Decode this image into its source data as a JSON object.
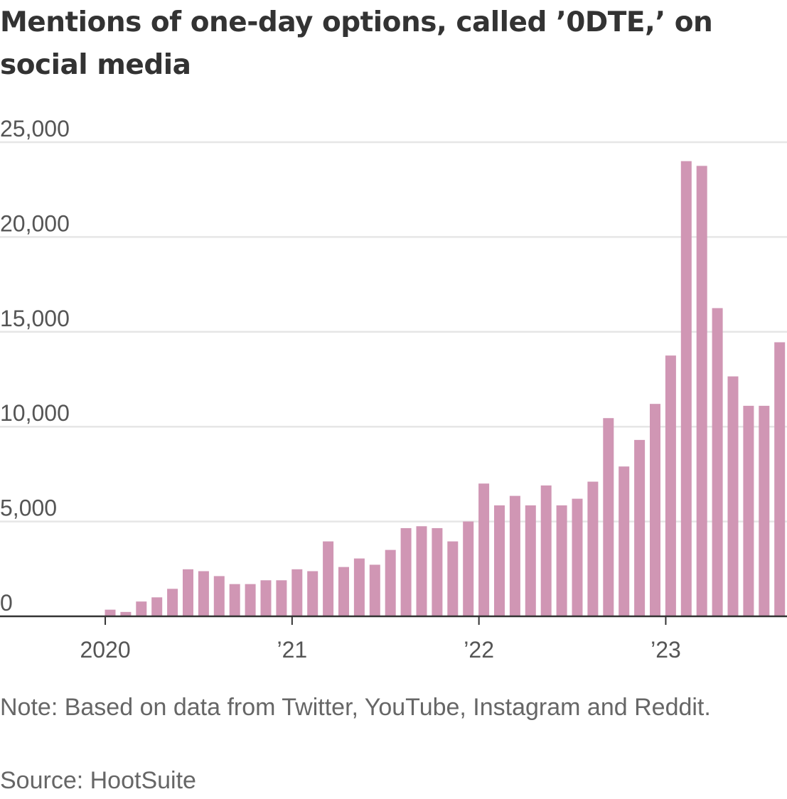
{
  "chart_data": {
    "type": "bar",
    "title": "Mentions of one-day options, called ’0DTE,’ on social media",
    "x_unit": "month",
    "x_start": "2020-01",
    "categories": [
      "2020-01",
      "2020-02",
      "2020-03",
      "2020-04",
      "2020-05",
      "2020-06",
      "2020-07",
      "2020-08",
      "2020-09",
      "2020-10",
      "2020-11",
      "2020-12",
      "2021-01",
      "2021-02",
      "2021-03",
      "2021-04",
      "2021-05",
      "2021-06",
      "2021-07",
      "2021-08",
      "2021-09",
      "2021-10",
      "2021-11",
      "2021-12",
      "2022-01",
      "2022-02",
      "2022-03",
      "2022-04",
      "2022-05",
      "2022-06",
      "2022-07",
      "2022-08",
      "2022-09",
      "2022-10",
      "2022-11",
      "2022-12",
      "2023-01",
      "2023-02",
      "2023-03",
      "2023-04",
      "2023-05",
      "2023-06",
      "2023-07",
      "2023-08"
    ],
    "values": [
      350,
      230,
      780,
      1000,
      1450,
      2480,
      2380,
      2120,
      1700,
      1700,
      1900,
      1900,
      2480,
      2380,
      3950,
      2600,
      3050,
      2720,
      3500,
      4650,
      4750,
      4650,
      3950,
      5000,
      7000,
      5850,
      6350,
      5850,
      6900,
      5850,
      6200,
      7100,
      10450,
      7900,
      9300,
      11200,
      13750,
      24000,
      23750,
      16250,
      12650,
      11100,
      11100,
      14450
    ],
    "ylim": [
      0,
      25000
    ],
    "y_ticks": [
      0,
      5000,
      10000,
      15000,
      20000,
      25000
    ],
    "y_tick_labels": [
      "0",
      "5,000",
      "10,000",
      "15,000",
      "20,000",
      "25,000"
    ],
    "x_tick_labels": [
      {
        "category": "2020-01",
        "label": "2020"
      },
      {
        "category": "2021-01",
        "label": "’21"
      },
      {
        "category": "2022-01",
        "label": "’22"
      },
      {
        "category": "2023-01",
        "label": "’23"
      }
    ],
    "grid": true,
    "bar_color": "#d096b4",
    "grid_color": "#e6e6e6",
    "axis_color": "#333333",
    "xlabel": "",
    "ylabel": ""
  },
  "note": "Note: Based on data from Twitter, YouTube, Instagram and Reddit.",
  "source": "Source: HootSuite"
}
